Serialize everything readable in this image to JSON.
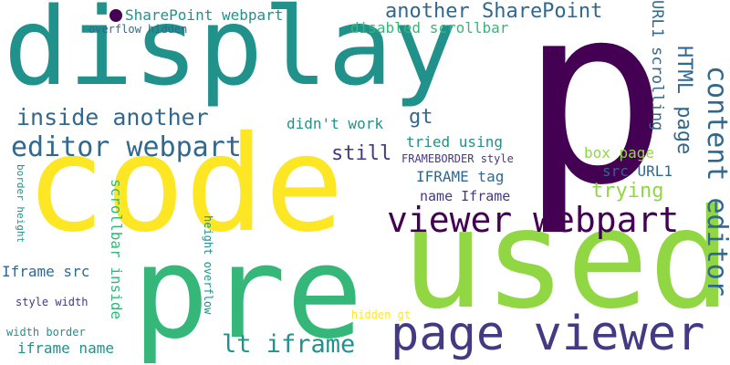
{
  "words": {
    "p": "p",
    "display": "display",
    "code": "code",
    "used": "used",
    "pre": "pre",
    "page_viewer": "page viewer",
    "viewer_webpart": "viewer webpart",
    "content_editor": "content editor",
    "editor_webpart": "editor webpart",
    "inside_another": "inside another",
    "another_sharepoint": "another SharePoint",
    "lt_iframe": "lt iframe",
    "sharepoint_webpart": "SharePoint webpart",
    "disabled_scrollbar": "disabled scrollbar",
    "overflow_hidden": "overflow hidden",
    "html_page": "HTML page",
    "url1_scrolling": "URL1 scrolling",
    "gt": "gt",
    "didnt_work": "didn't work",
    "still": "still",
    "tried_using": "tried using",
    "frameborder_style": "FRAMEBORDER style",
    "iframe_tag": "IFRAME tag",
    "box_page": "box page",
    "src_url1": "src URL1",
    "trying": "trying",
    "name_iframe": "name Iframe",
    "scrollbar_inside": "scrollbar inside",
    "height_overflow": "height overflow",
    "border_height": "border height",
    "iframe_src": "Iframe src",
    "style_width": "style width",
    "width_border": "width border",
    "iframe_name": "iframe name",
    "hidden_gt": "hidden gt"
  },
  "colors": {
    "dark_purple": "#440154",
    "indigo": "#443983",
    "slate_blue": "#31688e",
    "teal": "#21918c",
    "green": "#35b779",
    "lime": "#90d743",
    "yellow": "#fde725"
  }
}
